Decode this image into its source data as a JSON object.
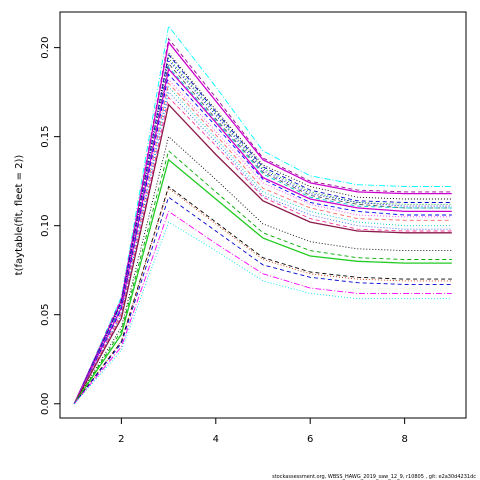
{
  "chart_data": {
    "type": "line",
    "title": "",
    "xlabel": "",
    "ylabel": "t(faytable(fit, fleet = 2))",
    "xlim": [
      0.7,
      9.3
    ],
    "ylim": [
      -0.008,
      0.22
    ],
    "x_ticks": [
      2,
      4,
      6,
      8
    ],
    "y_ticks": [
      0.0,
      0.05,
      0.1,
      0.15,
      0.2
    ],
    "x_tick_labels": [
      "2",
      "4",
      "6",
      "8"
    ],
    "y_tick_labels": [
      "0.00",
      "0.05",
      "0.10",
      "0.15",
      "0.20"
    ],
    "grid": false,
    "legend": "none",
    "x": [
      1,
      2,
      3,
      4,
      5,
      6,
      7,
      8,
      9
    ],
    "series": [
      {
        "color": "#00FFFF",
        "dash": "dashdot",
        "values": [
          0,
          0.06,
          0.212,
          0.178,
          0.142,
          0.128,
          0.123,
          0.122,
          0.122
        ]
      },
      {
        "color": "#990099",
        "dash": "dashed",
        "values": [
          0,
          0.059,
          0.205,
          0.172,
          0.138,
          0.125,
          0.12,
          0.119,
          0.119
        ]
      },
      {
        "color": "#CC00CC",
        "dash": "solid",
        "values": [
          0,
          0.058,
          0.203,
          0.17,
          0.137,
          0.124,
          0.119,
          0.118,
          0.118
        ]
      },
      {
        "color": "#000000",
        "dash": "dotted",
        "values": [
          0,
          0.057,
          0.197,
          0.165,
          0.134,
          0.122,
          0.116,
          0.115,
          0.115
        ]
      },
      {
        "color": "#0000CC",
        "dash": "dashed",
        "values": [
          0,
          0.057,
          0.196,
          0.164,
          0.133,
          0.12,
          0.114,
          0.113,
          0.113
        ]
      },
      {
        "color": "#00AA00",
        "dash": "dotted",
        "values": [
          0,
          0.056,
          0.194,
          0.163,
          0.132,
          0.119,
          0.113,
          0.112,
          0.112
        ]
      },
      {
        "color": "#0000FF",
        "dash": "dotted",
        "values": [
          0,
          0.056,
          0.193,
          0.162,
          0.131,
          0.118,
          0.113,
          0.111,
          0.111
        ]
      },
      {
        "color": "#555555",
        "dash": "dashed",
        "values": [
          0,
          0.055,
          0.191,
          0.16,
          0.13,
          0.117,
          0.112,
          0.11,
          0.11
        ]
      },
      {
        "color": "#00CCCC",
        "dash": "dashed",
        "values": [
          0,
          0.055,
          0.189,
          0.159,
          0.129,
          0.116,
          0.111,
          0.11,
          0.11
        ]
      },
      {
        "color": "#CC00CC",
        "dash": "solid",
        "values": [
          0,
          0.054,
          0.188,
          0.158,
          0.127,
          0.115,
          0.11,
          0.108,
          0.108
        ]
      },
      {
        "color": "#0000FF",
        "dash": "dashed",
        "values": [
          0,
          0.053,
          0.185,
          0.156,
          0.126,
          0.113,
          0.108,
          0.106,
          0.106
        ]
      },
      {
        "color": "#FF44FF",
        "dash": "dotted",
        "values": [
          0,
          0.052,
          0.182,
          0.153,
          0.124,
          0.112,
          0.106,
          0.105,
          0.105
        ]
      },
      {
        "color": "#FF6666",
        "dash": "dashed",
        "values": [
          0,
          0.051,
          0.18,
          0.151,
          0.121,
          0.11,
          0.104,
          0.103,
          0.103
        ]
      },
      {
        "color": "#00CCCC",
        "dash": "dotted",
        "values": [
          0,
          0.05,
          0.178,
          0.149,
          0.119,
          0.108,
          0.102,
          0.1,
          0.1
        ]
      },
      {
        "color": "#3366FF",
        "dash": "dotted",
        "values": [
          0,
          0.05,
          0.175,
          0.147,
          0.117,
          0.106,
          0.1,
          0.098,
          0.098
        ]
      },
      {
        "color": "#FF3399",
        "dash": "dashed",
        "values": [
          0,
          0.049,
          0.172,
          0.145,
          0.116,
          0.104,
          0.098,
          0.097,
          0.097
        ]
      },
      {
        "color": "#8B1A4A",
        "dash": "solid",
        "values": [
          0,
          0.048,
          0.168,
          0.14,
          0.114,
          0.102,
          0.097,
          0.096,
          0.096
        ]
      },
      {
        "color": "#000000",
        "dash": "dotted",
        "values": [
          0,
          0.043,
          0.15,
          0.126,
          0.101,
          0.091,
          0.087,
          0.086,
          0.086
        ]
      },
      {
        "color": "#00AA00",
        "dash": "dashed",
        "values": [
          0,
          0.041,
          0.142,
          0.119,
          0.096,
          0.086,
          0.082,
          0.081,
          0.081
        ]
      },
      {
        "color": "#22CC22",
        "dash": "solid",
        "values": [
          0,
          0.039,
          0.137,
          0.115,
          0.093,
          0.083,
          0.08,
          0.079,
          0.079
        ]
      },
      {
        "color": "#000000",
        "dash": "dashed",
        "values": [
          0,
          0.035,
          0.122,
          0.102,
          0.082,
          0.074,
          0.071,
          0.07,
          0.07
        ]
      },
      {
        "color": "#CC3300",
        "dash": "dotted",
        "values": [
          0,
          0.035,
          0.121,
          0.101,
          0.081,
          0.073,
          0.07,
          0.069,
          0.069
        ]
      },
      {
        "color": "#0000CC",
        "dash": "dashed",
        "values": [
          0,
          0.034,
          0.116,
          0.097,
          0.078,
          0.071,
          0.068,
          0.067,
          0.067
        ]
      },
      {
        "color": "#FF00FF",
        "dash": "dashdot",
        "values": [
          0,
          0.032,
          0.108,
          0.09,
          0.073,
          0.065,
          0.062,
          0.062,
          0.062
        ]
      },
      {
        "color": "#00E5EE",
        "dash": "dotted",
        "values": [
          0,
          0.03,
          0.102,
          0.086,
          0.069,
          0.062,
          0.059,
          0.059,
          0.059
        ]
      }
    ]
  },
  "footer": "stockassessment.org, WBSS_HAWG_2019_saw_12_9, r10805 , git: e2a30d4231dc"
}
